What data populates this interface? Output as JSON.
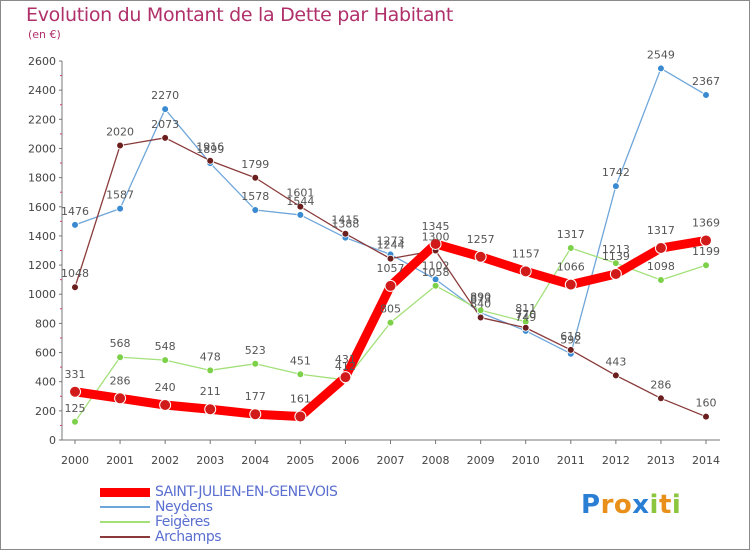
{
  "header": {
    "title": "Evolution du Montant de la Dette par Habitant",
    "unit": "(en €)"
  },
  "logo": {
    "letters": [
      "P",
      "r",
      "o",
      "x",
      "i",
      "t",
      "i"
    ],
    "colors": [
      "#2a7fd4",
      "#e8901a",
      "#e8901a",
      "#2a7fd4",
      "#8cc63f",
      "#e8901a",
      "#8cc63f"
    ]
  },
  "chart_data": {
    "type": "line",
    "title": "Evolution du Montant de la Dette par Habitant",
    "subtitle": "(en €)",
    "xlabel": "",
    "ylabel": "",
    "ylim": [
      0,
      2600
    ],
    "yticks": [
      0,
      200,
      400,
      600,
      800,
      1000,
      1200,
      1400,
      1600,
      1800,
      2000,
      2200,
      2400,
      2600
    ],
    "grid": false,
    "legend_position": "bottom-left",
    "categories": [
      "2000",
      "2001",
      "2002",
      "2003",
      "2004",
      "2005",
      "2006",
      "2007",
      "2008",
      "2009",
      "2010",
      "2011",
      "2012",
      "2013",
      "2014"
    ],
    "series": [
      {
        "name": "SAINT-JULIEN-EN-GENEVOIS",
        "color": "#ff0000",
        "marker": "#d11a1a",
        "thick": true,
        "values": [
          331,
          286,
          240,
          211,
          177,
          161,
          431,
          1057,
          1345,
          1257,
          1157,
          1066,
          1139,
          1317,
          1369
        ],
        "labels": [
          "331",
          "286",
          "240",
          "211",
          "177",
          "161",
          "431",
          "1057",
          "1345",
          "1257",
          "1157",
          "1066",
          "1139",
          "1317",
          "1369"
        ]
      },
      {
        "name": "Neydens",
        "color": "#6fa6d9",
        "marker": "#3a8ad1",
        "thick": false,
        "values": [
          1476,
          1587,
          2270,
          1899,
          1578,
          1544,
          1388,
          1273,
          1102,
          873,
          749,
          592,
          1742,
          2549,
          2367
        ],
        "labels": [
          "1476",
          "1587",
          "2270",
          "1899",
          "1578",
          "1544",
          "1388",
          "1273",
          "1102",
          "873",
          "749",
          "592",
          "1742",
          "2549",
          "2367"
        ]
      },
      {
        "name": "Feigères",
        "color": "#a3e07a",
        "marker": "#7cd149",
        "thick": false,
        "values": [
          125,
          568,
          548,
          478,
          523,
          451,
          412,
          805,
          1058,
          890,
          811,
          1317,
          1213,
          1098,
          1199
        ],
        "labels": [
          "125",
          "568",
          "548",
          "478",
          "523",
          "451",
          "412",
          "805",
          "1058",
          "890",
          "811",
          "1317",
          "1213",
          "1098",
          "1199"
        ]
      },
      {
        "name": "Archamps",
        "color": "#8a3a3a",
        "marker": "#6b1e1e",
        "thick": false,
        "values": [
          1048,
          2020,
          2073,
          1916,
          1799,
          1601,
          1415,
          1244,
          1300,
          840,
          770,
          618,
          443,
          286,
          160
        ],
        "labels": [
          "1048",
          "2020",
          "2073",
          "1916",
          "1799",
          "1601",
          "1415",
          "1244",
          "1300",
          "840",
          "770",
          "618",
          "443",
          "286",
          "160"
        ]
      }
    ]
  }
}
